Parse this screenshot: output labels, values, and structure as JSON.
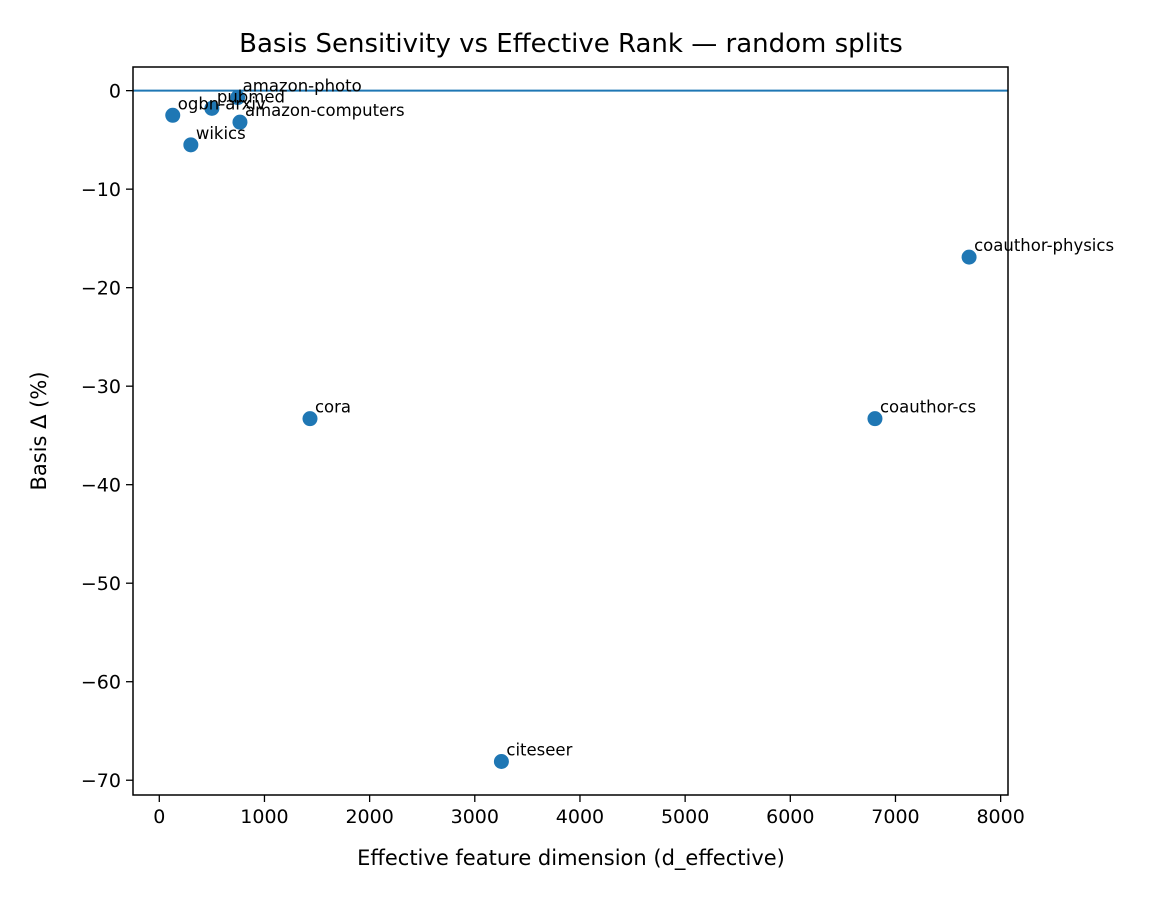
{
  "chart_data": {
    "type": "scatter",
    "title": "Basis Sensitivity vs Effective Rank — random splits",
    "xlabel": "Effective feature dimension (d_effective)",
    "ylabel": "Basis Δ (%)",
    "xlim": [
      -250,
      8070
    ],
    "ylim": [
      -71.5,
      2.4
    ],
    "xticks": [
      0,
      1000,
      2000,
      3000,
      4000,
      5000,
      6000,
      7000,
      8000
    ],
    "yticks": [
      0,
      -10,
      -20,
      -30,
      -40,
      -50,
      -60,
      -70
    ],
    "xtick_labels": [
      "0",
      "1000",
      "2000",
      "3000",
      "4000",
      "5000",
      "6000",
      "7000",
      "8000"
    ],
    "ytick_labels": [
      "0",
      "−10",
      "−20",
      "−30",
      "−40",
      "−50",
      "−60",
      "−70"
    ],
    "reference_line": {
      "y": 0
    },
    "grid": false,
    "marker_color": "#1f77b4",
    "points": [
      {
        "label": "amazon-photo",
        "x": 745,
        "y": -0.7
      },
      {
        "label": "pubmed",
        "x": 500,
        "y": -1.8
      },
      {
        "label": "ogbn-arxiv",
        "x": 128,
        "y": -2.5
      },
      {
        "label": "amazon-computers",
        "x": 767,
        "y": -3.2
      },
      {
        "label": "wikics",
        "x": 300,
        "y": -5.5
      },
      {
        "label": "coauthor-physics",
        "x": 7700,
        "y": -16.9
      },
      {
        "label": "cora",
        "x": 1433,
        "y": -33.3
      },
      {
        "label": "coauthor-cs",
        "x": 6805,
        "y": -33.3
      },
      {
        "label": "citeseer",
        "x": 3253,
        "y": -68.1
      }
    ]
  }
}
